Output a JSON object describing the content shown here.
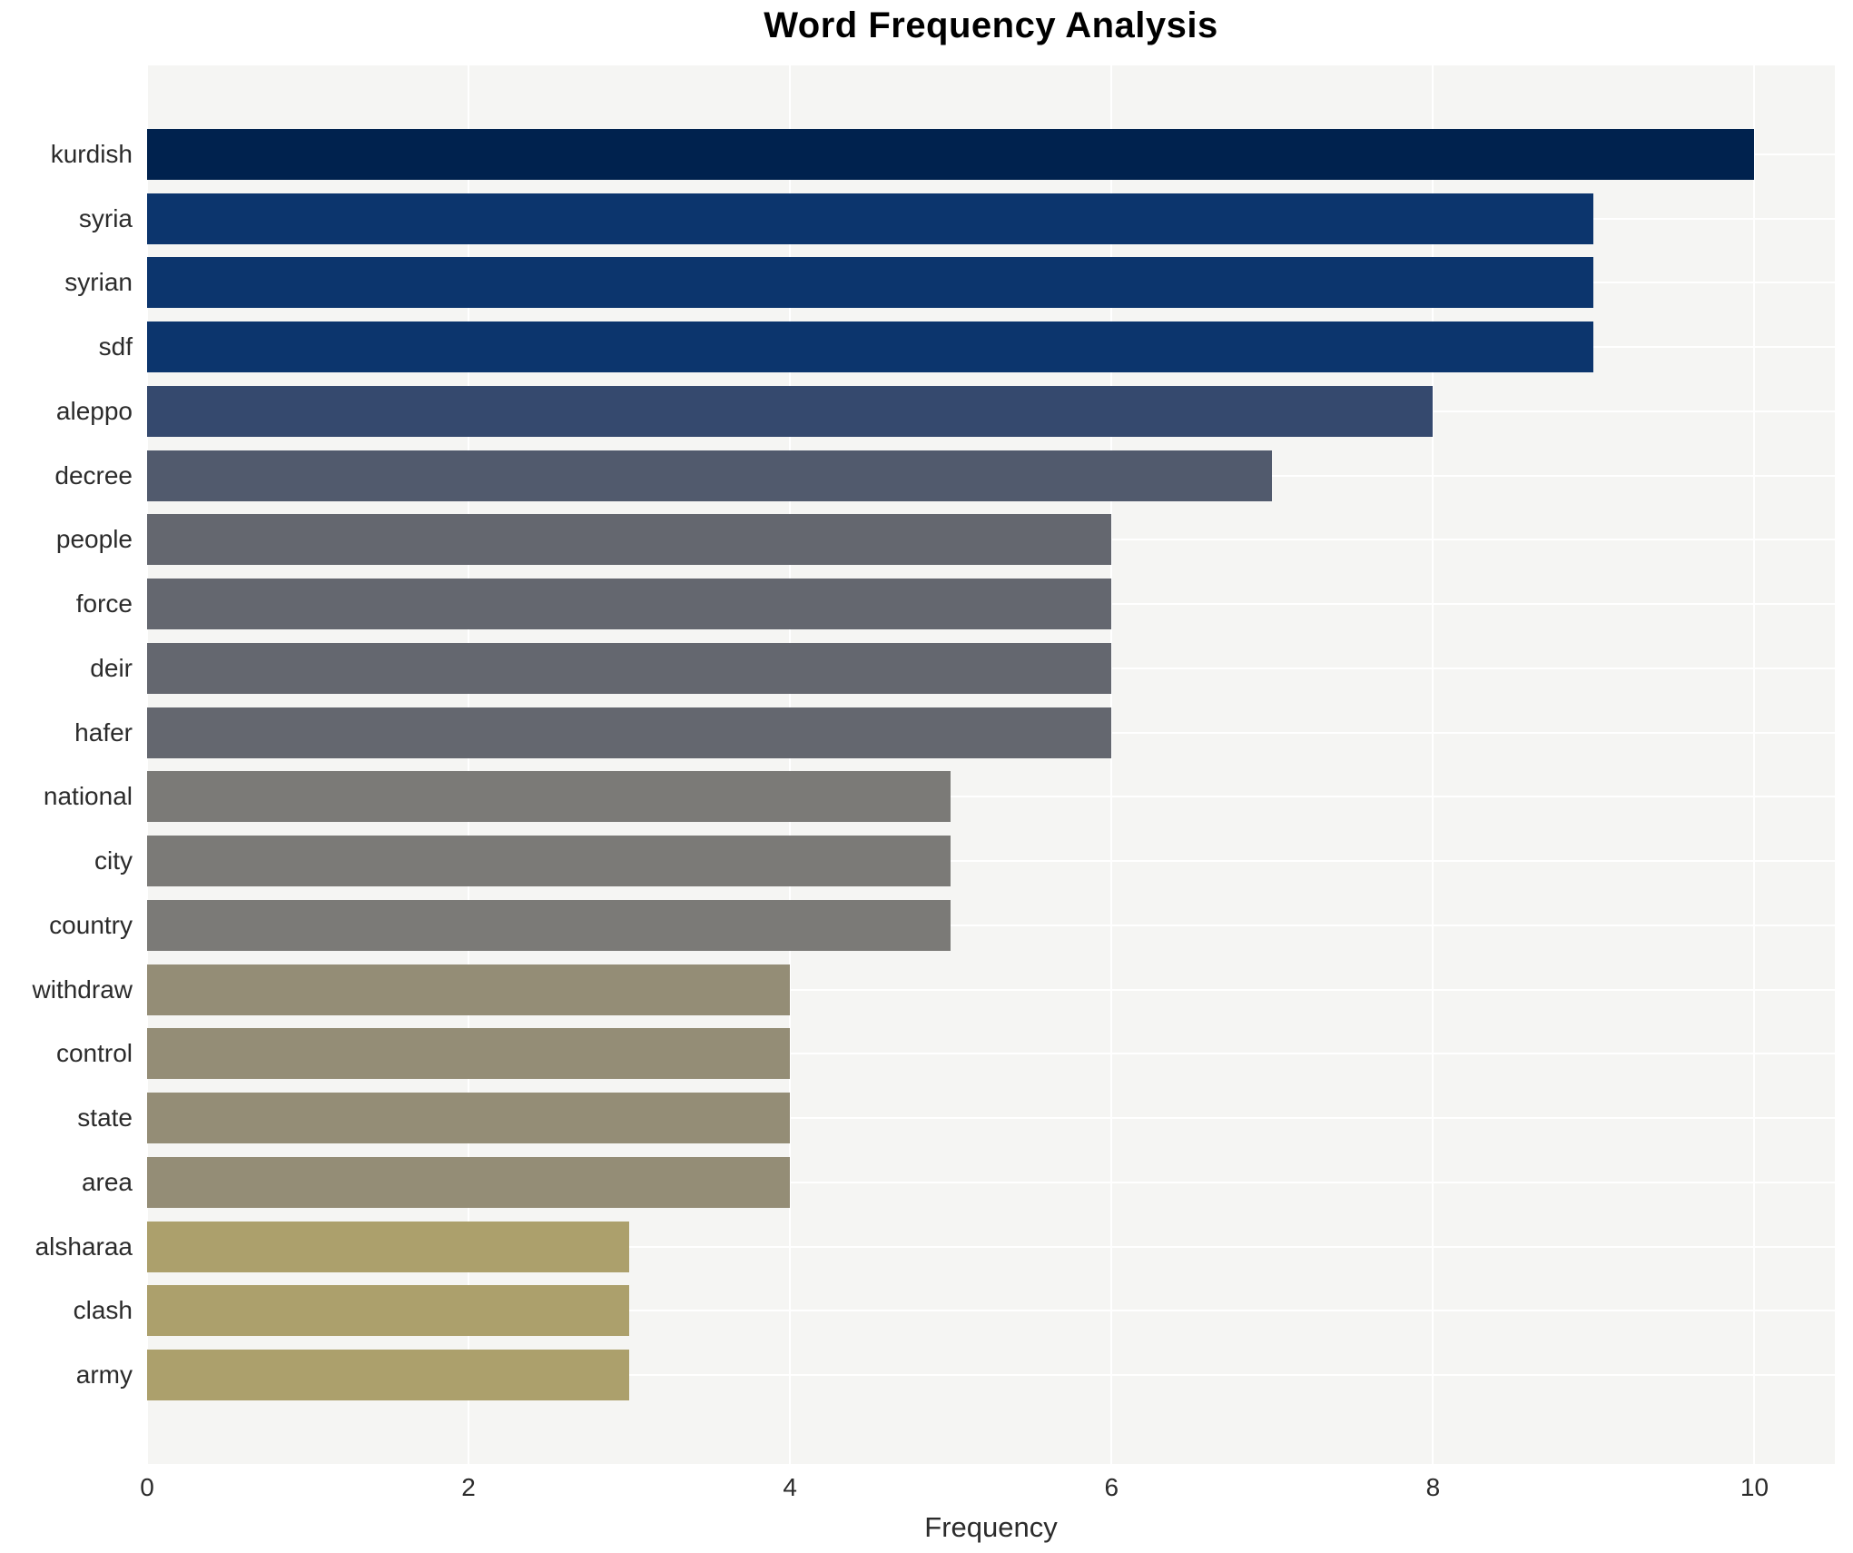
{
  "title": "Word Frequency Analysis",
  "chart_data": {
    "type": "bar",
    "orientation": "horizontal",
    "title": "Word Frequency Analysis",
    "xlabel": "Frequency",
    "ylabel": "",
    "categories": [
      "kurdish",
      "syria",
      "syrian",
      "sdf",
      "aleppo",
      "decree",
      "people",
      "force",
      "deir",
      "hafer",
      "national",
      "city",
      "country",
      "withdraw",
      "control",
      "state",
      "area",
      "alsharaa",
      "clash",
      "army"
    ],
    "values": [
      10,
      9,
      9,
      9,
      8,
      7,
      6,
      6,
      6,
      6,
      5,
      5,
      5,
      4,
      4,
      4,
      4,
      3,
      3,
      3
    ],
    "bar_colors": [
      "#00224e",
      "#0c356d",
      "#0c356d",
      "#0c356d",
      "#35496e",
      "#515a6d",
      "#64676f",
      "#64676f",
      "#64676f",
      "#64676f",
      "#7b7a77",
      "#7b7a77",
      "#7b7a77",
      "#948d76",
      "#948d76",
      "#948d76",
      "#948d76",
      "#aca06c",
      "#aca06c",
      "#aca06c"
    ],
    "xlim": [
      0,
      10.5
    ],
    "xticks": [
      0,
      2,
      4,
      6,
      8,
      10
    ],
    "grid": true,
    "legend": false,
    "plot_bg_color": "#f5f5f3",
    "grid_color": "#ffffff"
  }
}
